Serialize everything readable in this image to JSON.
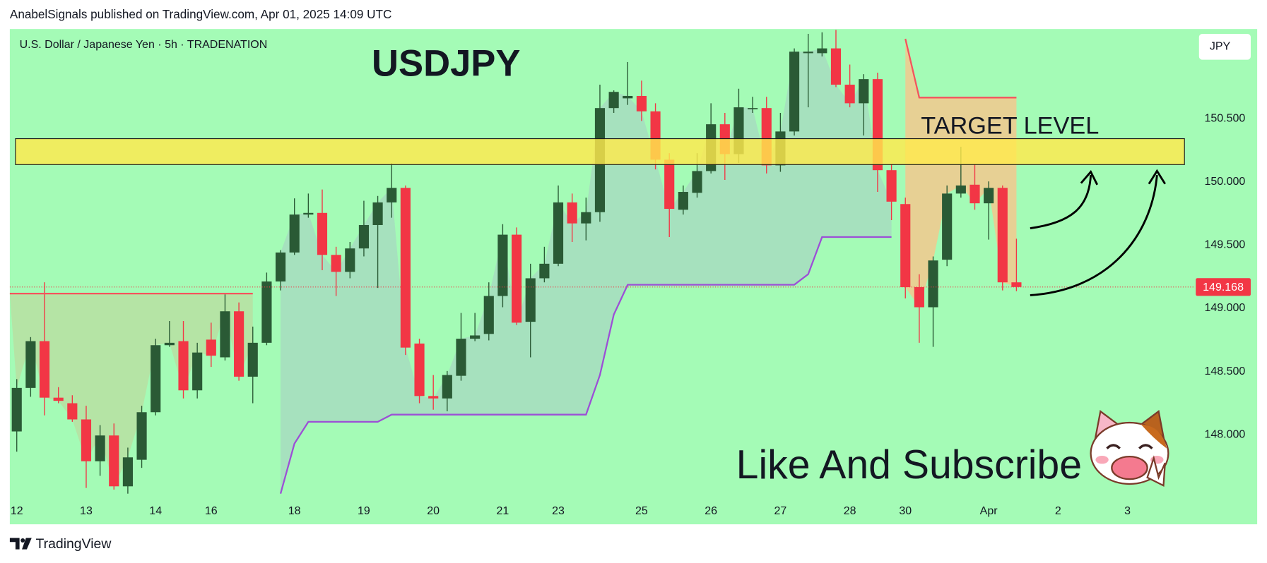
{
  "header": {
    "text": "AnabelSignals published on TradingView.com, Apr 01, 2025 14:09 UTC"
  },
  "footer": {
    "brand": "TradingView"
  },
  "chart_data": {
    "type": "candlestick",
    "subtitle": "U.S. Dollar / Japanese Yen · 5h · TRADENATION",
    "title": "USDJPY",
    "currency": "JPY",
    "annotation": "Like And Subscribe",
    "background": "#a4fbb6",
    "up_color": "#2a5a35",
    "down_color": "#f23645",
    "open": [
      148.026,
      148.37,
      148.74,
      148.293,
      148.249,
      148.121,
      147.79,
      147.994,
      147.592,
      147.802,
      148.178,
      148.708,
      148.74,
      148.351,
      148.752,
      148.612,
      148.976,
      148.459,
      148.727,
      149.212,
      149.441,
      149.741,
      149.754,
      149.422,
      149.288,
      149.473,
      149.658,
      149.837,
      149.952,
      148.721,
      148.306,
      148.287,
      148.466,
      148.759,
      148.797,
      149.097,
      149.582,
      148.893,
      149.237,
      149.352,
      149.837,
      149.671,
      149.76,
      150.583,
      150.66,
      150.679,
      150.557,
      150.175,
      149.779,
      149.913,
      150.085,
      150.455,
      150.219,
      150.577,
      150.583,
      150.13,
      150.398,
      151.017,
      151.017,
      151.055,
      150.768,
      150.621,
      150.812,
      150.092,
      149.824,
      149.167,
      149.008,
      149.384,
      149.907,
      149.977,
      149.83,
      149.952,
      149.205
    ],
    "high": [
      148.44,
      148.772,
      149.205,
      148.376,
      148.312,
      148.229,
      148.076,
      148.089,
      147.898,
      148.229,
      148.759,
      148.899,
      148.899,
      148.727,
      148.886,
      149.11,
      149.046,
      148.855,
      149.282,
      149.46,
      149.869,
      149.907,
      149.939,
      149.486,
      149.524,
      149.85,
      149.888,
      150.149,
      149.971,
      148.759,
      148.472,
      148.504,
      148.963,
      148.963,
      149.205,
      149.665,
      149.639,
      149.352,
      149.486,
      149.971,
      149.907,
      149.875,
      150.768,
      150.723,
      150.947,
      150.8,
      150.621,
      150.226,
      149.971,
      150.226,
      150.621,
      150.545,
      150.736,
      150.672,
      150.672,
      150.545,
      151.055,
      151.17,
      151.182,
      151.201,
      150.927,
      150.851,
      150.863,
      150.143,
      149.875,
      149.269,
      149.41,
      149.971,
      150.277,
      150.143,
      150.003,
      149.971,
      149.55
    ],
    "low": [
      147.866,
      148.3,
      148.153,
      148.249,
      148.102,
      147.579,
      147.675,
      147.566,
      147.534,
      147.738,
      148.153,
      148.695,
      148.287,
      148.287,
      148.536,
      148.587,
      148.427,
      148.249,
      148.708,
      149.141,
      149.422,
      149.716,
      149.301,
      149.097,
      149.237,
      149.41,
      149.161,
      149.716,
      148.631,
      148.249,
      148.198,
      148.185,
      148.427,
      148.74,
      148.746,
      149.008,
      148.867,
      148.612,
      149.205,
      149.333,
      149.524,
      149.537,
      149.684,
      150.545,
      150.608,
      150.481,
      150.098,
      149.563,
      149.741,
      149.875,
      150.066,
      150.015,
      150.149,
      150.545,
      150.066,
      150.079,
      150.366,
      150.589,
      150.991,
      150.749,
      150.589,
      150.366,
      149.92,
      149.697,
      149.078,
      148.727,
      148.695,
      149.333,
      149.875,
      149.779,
      149.543,
      149.141,
      149.135
    ],
    "close": [
      148.37,
      148.74,
      148.293,
      148.268,
      148.121,
      147.79,
      147.994,
      147.592,
      147.821,
      148.178,
      148.708,
      148.727,
      148.351,
      148.65,
      148.625,
      148.976,
      148.459,
      148.727,
      149.212,
      149.441,
      149.741,
      149.754,
      149.422,
      149.288,
      149.473,
      149.658,
      149.837,
      149.952,
      148.689,
      148.306,
      148.287,
      148.472,
      148.759,
      148.785,
      149.097,
      149.582,
      148.886,
      149.237,
      149.352,
      149.837,
      149.671,
      149.76,
      150.583,
      150.711,
      150.679,
      150.557,
      150.175,
      149.786,
      149.92,
      150.085,
      150.455,
      150.219,
      150.589,
      150.583,
      150.13,
      150.398,
      151.029,
      151.029,
      151.055,
      150.768,
      150.621,
      150.812,
      150.092,
      149.843,
      149.167,
      149.008,
      149.378,
      149.907,
      149.971,
      149.83,
      149.952,
      149.205,
      149.168
    ],
    "last_price": 149.168,
    "last_price_color": "#f23645",
    "xlim": [
      -0.5,
      84.8
    ],
    "xticks": [
      {
        "value": 0,
        "label": "12"
      },
      {
        "value": 5,
        "label": "13"
      },
      {
        "value": 10,
        "label": "14"
      },
      {
        "value": 14,
        "label": "16"
      },
      {
        "value": 20,
        "label": "18"
      },
      {
        "value": 25,
        "label": "19"
      },
      {
        "value": 30,
        "label": "20"
      },
      {
        "value": 35,
        "label": "21"
      },
      {
        "value": 39,
        "label": "23"
      },
      {
        "value": 45,
        "label": "25"
      },
      {
        "value": 50,
        "label": "26"
      },
      {
        "value": 55,
        "label": "27"
      },
      {
        "value": 60,
        "label": "28"
      },
      {
        "value": 64,
        "label": "30"
      },
      {
        "value": 70,
        "label": "Apr"
      },
      {
        "value": 75,
        "label": "2"
      },
      {
        "value": 80,
        "label": "3"
      }
    ],
    "ylim": [
      147.515,
      151.208
    ],
    "yticks": [
      {
        "value": 148,
        "label": "148.000"
      },
      {
        "value": 148.5,
        "label": "148.500"
      },
      {
        "value": 149,
        "label": "149.000"
      },
      {
        "value": 149.5,
        "label": "149.500"
      },
      {
        "value": 150,
        "label": "150.000"
      },
      {
        "value": 150.5,
        "label": "150.500"
      }
    ],
    "zone": {
      "label": "TARGET LEVEL",
      "low": 150.136,
      "high": 150.341,
      "color": "#ffe94d"
    },
    "bands": [
      {
        "color": "#f5535d",
        "fill": "#b8dfa2",
        "x": [
          -0.5,
          17
        ],
        "values": [
          149.116,
          149.116
        ]
      },
      {
        "color": "#f5535d",
        "fill": "#f3c88e",
        "x": [
          64,
          65,
          72
        ],
        "values": [
          151.131,
          150.666,
          150.666
        ]
      },
      {
        "color": "#9c4fd6",
        "fill": "#a7dcc0",
        "x": [
          19,
          20,
          21,
          26,
          27,
          41,
          42,
          43,
          44,
          56,
          57,
          58,
          63
        ],
        "values": [
          147.534,
          147.93,
          148.102,
          148.102,
          148.159,
          148.159,
          148.472,
          148.95,
          149.186,
          149.186,
          149.269,
          149.563,
          149.563
        ]
      }
    ]
  }
}
